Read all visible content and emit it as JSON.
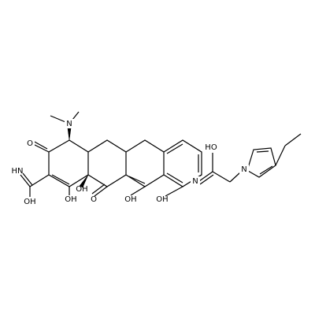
{
  "atoms": [
    {
      "label": "N"
    },
    {
      "label": "O"
    },
    {
      "label": "HN"
    },
    {
      "label": "OH"
    },
    {
      "label": "OH"
    },
    {
      "label": "OH"
    },
    {
      "label": "O"
    },
    {
      "label": "OH"
    },
    {
      "label": "OH"
    },
    {
      "label": "N"
    },
    {
      "label": "HO"
    },
    {
      "label": "N"
    }
  ]
}
